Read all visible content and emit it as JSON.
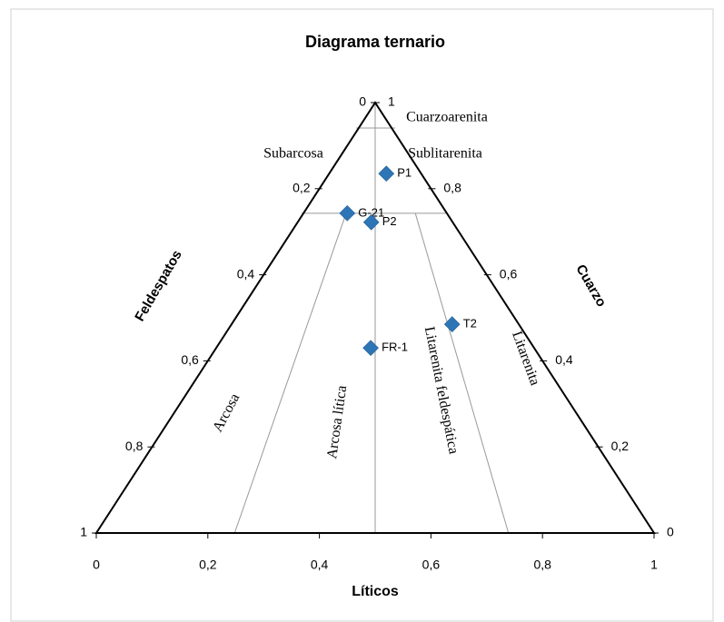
{
  "chart_data": {
    "type": "ternary",
    "title": "Diagrama ternario",
    "axis_labels": {
      "bottom": "Líticos",
      "left": "Feldespatos",
      "right": "Cuarzo"
    },
    "xlim": [
      0,
      1
    ],
    "ylim": [
      0,
      1
    ],
    "xticks": [
      0,
      {
        "value": 0.2,
        "label": "0,2"
      },
      {
        "value": 0.4,
        "label": "0,4"
      },
      {
        "value": 0.6,
        "label": "0,6"
      },
      {
        "value": 0.8,
        "label": "0,8"
      },
      1
    ],
    "left_ticks": [
      0,
      {
        "value": 0.2,
        "label": "0,2"
      },
      {
        "value": 0.4,
        "label": "0,4"
      },
      {
        "value": 0.6,
        "label": "0,6"
      },
      {
        "value": 0.8,
        "label": "0,8"
      },
      1
    ],
    "right_ticks": [
      0,
      {
        "value": 0.2,
        "label": "0,2"
      },
      {
        "value": 0.4,
        "label": "0,4"
      },
      {
        "value": 0.6,
        "label": "0,6"
      },
      {
        "value": 0.8,
        "label": "0,8"
      },
      1
    ],
    "boundary_lines": [
      {
        "x": [
          0.466,
          0.536
        ],
        "y": [
          0.941,
          0.941
        ]
      },
      {
        "x": [
          0.368,
          0.629
        ],
        "y": [
          0.743,
          0.743
        ]
      },
      {
        "x": [
          0.5,
          0.5
        ],
        "y": [
          1,
          0
        ]
      },
      {
        "x": [
          0.448,
          0.248
        ],
        "y": [
          0.743,
          0
        ]
      },
      {
        "x": [
          0.572,
          0.739
        ],
        "y": [
          0.743,
          0
        ]
      }
    ],
    "regions": [
      "Cuarzoarenita",
      "Subarcosa",
      "Sublitarenita",
      "Arcosa",
      "Arcosa lítica",
      "Litarenita feldespática",
      "Litarenita"
    ],
    "series": [
      {
        "color": "#2e75b6",
        "labels": [
          "P1",
          "G-21",
          "P2",
          "T2",
          "FR-1"
        ],
        "x": [
          0.52,
          0.45,
          0.493,
          0.638,
          0.492
        ],
        "values": [
          0.835,
          0.743,
          0.722,
          0.485,
          0.43
        ]
      }
    ]
  }
}
